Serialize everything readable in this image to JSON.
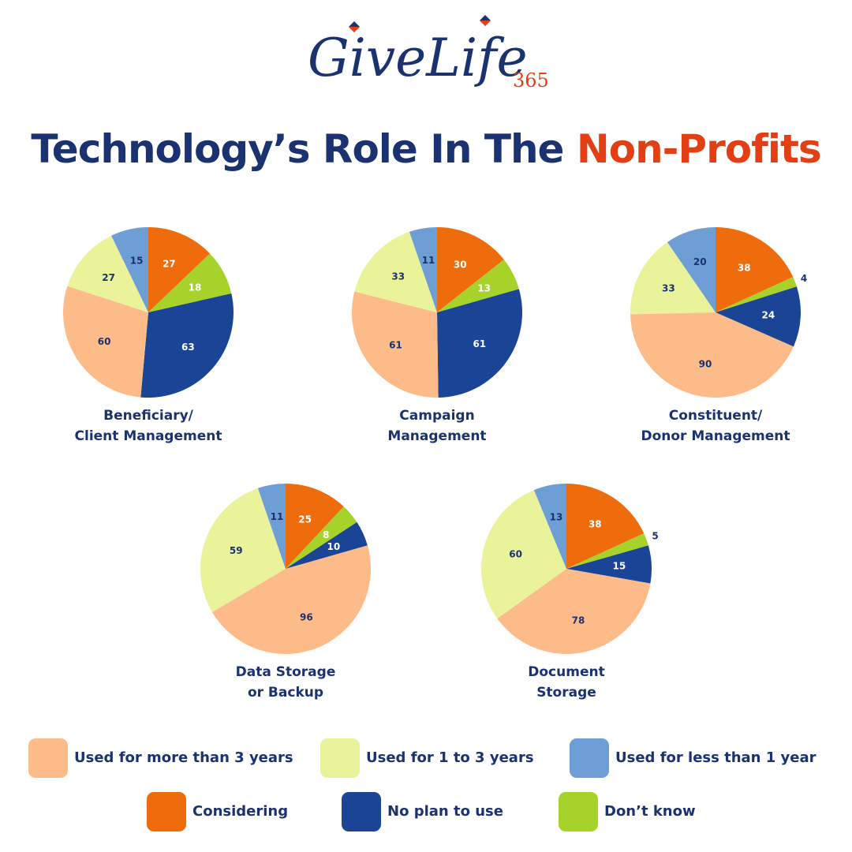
{
  "logo": {
    "main": "GiveLife",
    "number": "365"
  },
  "header": {
    "title_part1": "Technology’s Role In The ",
    "title_part2": "Non-Profits"
  },
  "colors": {
    "more_than_3": "#fdbb8a",
    "one_to_3": "#eaf39a",
    "less_than_1": "#6e9ed6",
    "considering": "#ee6c0c",
    "no_plan": "#1a4495",
    "dont_know": "#a7d22a",
    "title_dark": "#1b3270",
    "title_accent": "#e23f14"
  },
  "legend": {
    "items": [
      {
        "key": "more_than_3",
        "label": "Used for more than 3 years"
      },
      {
        "key": "one_to_3",
        "label": "Used for 1 to 3 years"
      },
      {
        "key": "less_than_1",
        "label": "Used for less than 1 year"
      },
      {
        "key": "considering",
        "label": "Considering"
      },
      {
        "key": "no_plan",
        "label": "No plan to use"
      },
      {
        "key": "dont_know",
        "label": "Don’t know"
      }
    ]
  },
  "chart_data": [
    {
      "type": "pie",
      "title_lines": [
        "Beneficiary/",
        "Client Management"
      ],
      "categories": [
        "Considering",
        "Don’t know",
        "No plan to use",
        "Used for more than 3 years",
        "Used for 1 to 3 years",
        "Used for less than 1 year"
      ],
      "keys": [
        "considering",
        "dont_know",
        "no_plan",
        "more_than_3",
        "one_to_3",
        "less_than_1"
      ],
      "values": [
        27,
        18,
        63,
        60,
        27,
        15
      ]
    },
    {
      "type": "pie",
      "title_lines": [
        "Campaign",
        "Management"
      ],
      "categories": [
        "Considering",
        "Don’t know",
        "No plan to use",
        "Used for more than 3 years",
        "Used for 1 to 3 years",
        "Used for less than 1 year"
      ],
      "keys": [
        "considering",
        "dont_know",
        "no_plan",
        "more_than_3",
        "one_to_3",
        "less_than_1"
      ],
      "values": [
        30,
        13,
        61,
        61,
        33,
        11
      ]
    },
    {
      "type": "pie",
      "title_lines": [
        "Constituent/",
        "Donor Management"
      ],
      "categories": [
        "Considering",
        "Don’t know",
        "No plan to use",
        "Used for more than 3 years",
        "Used for 1 to 3 years",
        "Used for less than 1 year"
      ],
      "keys": [
        "considering",
        "dont_know",
        "no_plan",
        "more_than_3",
        "one_to_3",
        "less_than_1"
      ],
      "values": [
        38,
        4,
        24,
        90,
        33,
        20
      ]
    },
    {
      "type": "pie",
      "title_lines": [
        "Data Storage",
        "or Backup"
      ],
      "categories": [
        "Considering",
        "Don’t know",
        "No plan to use",
        "Used for more than 3 years",
        "Used for 1 to 3 years",
        "Used for less than 1 year"
      ],
      "keys": [
        "considering",
        "dont_know",
        "no_plan",
        "more_than_3",
        "one_to_3",
        "less_than_1"
      ],
      "values": [
        25,
        8,
        10,
        96,
        59,
        11
      ]
    },
    {
      "type": "pie",
      "title_lines": [
        "Document",
        "Storage"
      ],
      "categories": [
        "Considering",
        "Don’t know",
        "No plan to use",
        "Used for more than 3 years",
        "Used for 1 to 3 years",
        "Used for less than 1 year"
      ],
      "keys": [
        "considering",
        "dont_know",
        "no_plan",
        "more_than_3",
        "one_to_3",
        "less_than_1"
      ],
      "values": [
        38,
        5,
        15,
        78,
        60,
        13
      ]
    }
  ]
}
